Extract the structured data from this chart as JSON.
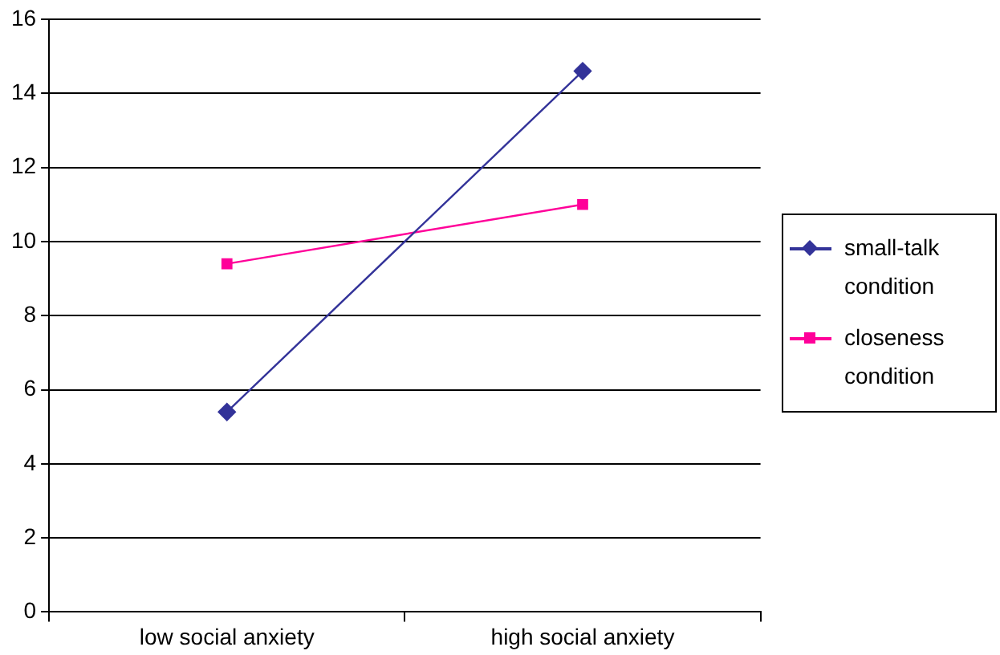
{
  "chart_data": {
    "type": "line",
    "categories": [
      "low social anxiety",
      "high social anxiety"
    ],
    "series": [
      {
        "name": "small-talk condition",
        "color": "#333399",
        "values": [
          5.4,
          14.6
        ],
        "marker": "diamond"
      },
      {
        "name": "closeness condition",
        "color": "#ff0099",
        "values": [
          9.4,
          11.0
        ],
        "marker": "square"
      }
    ],
    "ylim": [
      0,
      16
    ],
    "yticks": [
      0,
      2,
      4,
      6,
      8,
      10,
      12,
      14,
      16
    ],
    "grid": "y",
    "legend": "right",
    "line_style": "solid"
  }
}
